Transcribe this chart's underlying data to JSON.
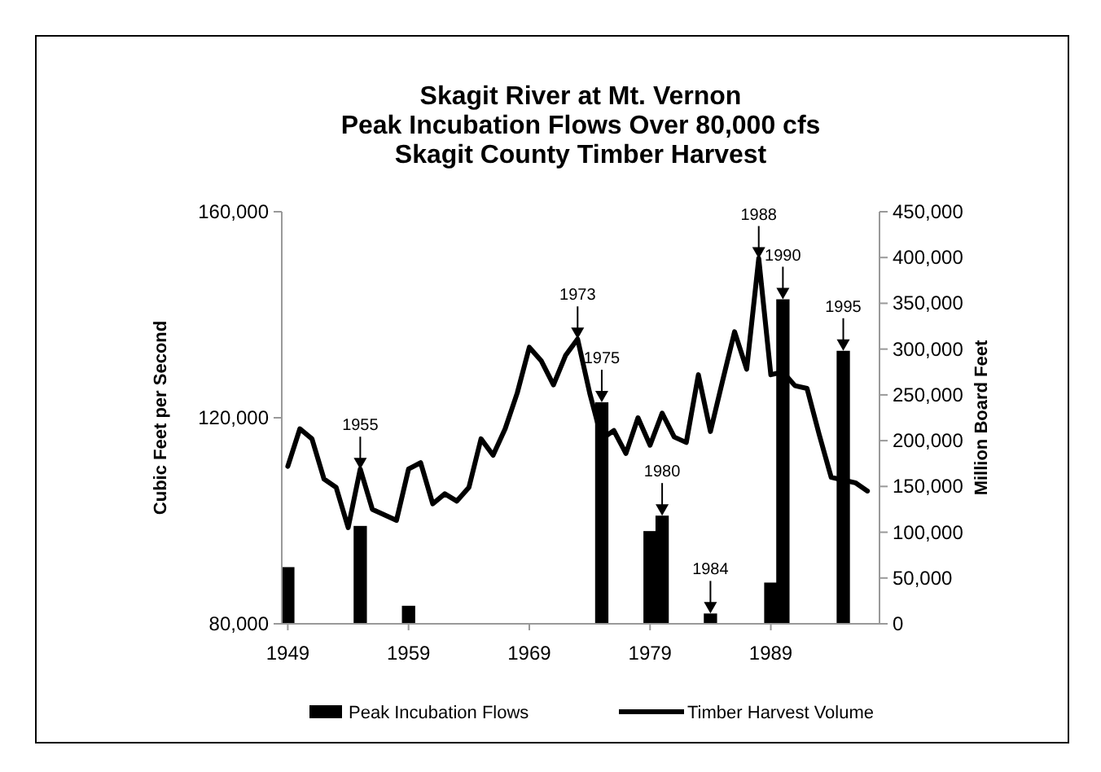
{
  "chart_data": {
    "type": "bar",
    "title": "Skagit River at Mt. Vernon\nPeak Incubation Flows Over 80,000 cfs\nSkagit County Timber Harvest",
    "ylabel": "Cubic Feet per Second",
    "y2label": "Million Board Feet",
    "xlim": [
      1948.5,
      1998
    ],
    "xticks": [
      1949,
      1959,
      1969,
      1979,
      1989
    ],
    "ylim": [
      80000,
      160000
    ],
    "yticks": [
      {
        "value": 80000,
        "label": "80,000"
      },
      {
        "value": 120000,
        "label": "120,000"
      },
      {
        "value": 160000,
        "label": "160,000"
      }
    ],
    "y2lim": [
      0,
      450000
    ],
    "y2ticks": [
      {
        "value": 0,
        "label": "0"
      },
      {
        "value": 50000,
        "label": "50,000"
      },
      {
        "value": 100000,
        "label": "100,000"
      },
      {
        "value": 150000,
        "label": "150,000"
      },
      {
        "value": 200000,
        "label": "200,000"
      },
      {
        "value": 250000,
        "label": "250,000"
      },
      {
        "value": 300000,
        "label": "300,000"
      },
      {
        "value": 350000,
        "label": "350,000"
      },
      {
        "value": 400000,
        "label": "400,000"
      },
      {
        "value": 450000,
        "label": "450,000"
      }
    ],
    "series": [
      {
        "name": "Peak Incubation Flows",
        "color": "#000000",
        "x": [
          1949,
          1955,
          1959,
          1975,
          1979,
          1980,
          1984,
          1989,
          1990,
          1995
        ],
        "values": [
          91000,
          99000,
          83500,
          123000,
          98000,
          101000,
          82000,
          88000,
          143000,
          133000
        ]
      },
      {
        "name": "Timber Harvest Volume",
        "type": "line",
        "axis": "y2",
        "color": "#000000",
        "x": [
          1949,
          1950,
          1951,
          1952,
          1953,
          1954,
          1955,
          1956,
          1957,
          1958,
          1959,
          1960,
          1961,
          1962,
          1963,
          1964,
          1965,
          1966,
          1967,
          1968,
          1969,
          1970,
          1971,
          1972,
          1973,
          1974,
          1975,
          1976,
          1977,
          1978,
          1979,
          1980,
          1981,
          1982,
          1983,
          1984,
          1985,
          1986,
          1987,
          1988,
          1989,
          1990,
          1991,
          1992,
          1993,
          1994,
          1995,
          1996,
          1997
        ],
        "values": [
          172000,
          213000,
          202000,
          158000,
          149000,
          105000,
          169000,
          125000,
          119000,
          113000,
          169000,
          176000,
          131000,
          142000,
          134000,
          149000,
          202000,
          184000,
          213000,
          252000,
          302000,
          287000,
          261000,
          293000,
          311000,
          252000,
          202000,
          211000,
          186000,
          225000,
          195000,
          230000,
          204000,
          198000,
          272000,
          210000,
          265000,
          319000,
          278000,
          399000,
          272000,
          275000,
          260000,
          257000,
          207000,
          160000,
          157000,
          154000,
          145000
        ]
      }
    ],
    "annotations": [
      {
        "text": "1955",
        "x": 1955,
        "y": 110000
      },
      {
        "text": "1973",
        "x": 1973,
        "y": 135300
      },
      {
        "text": "1975",
        "x": 1975,
        "y": 123000
      },
      {
        "text": "1980",
        "x": 1980,
        "y": 101000
      },
      {
        "text": "1984",
        "x": 1984,
        "y": 82000
      },
      {
        "text": "1988",
        "x": 1988,
        "y": 150900
      },
      {
        "text": "1990",
        "x": 1990,
        "y": 143000
      },
      {
        "text": "1995",
        "x": 1995,
        "y": 133000
      }
    ],
    "legend": "bottom"
  }
}
